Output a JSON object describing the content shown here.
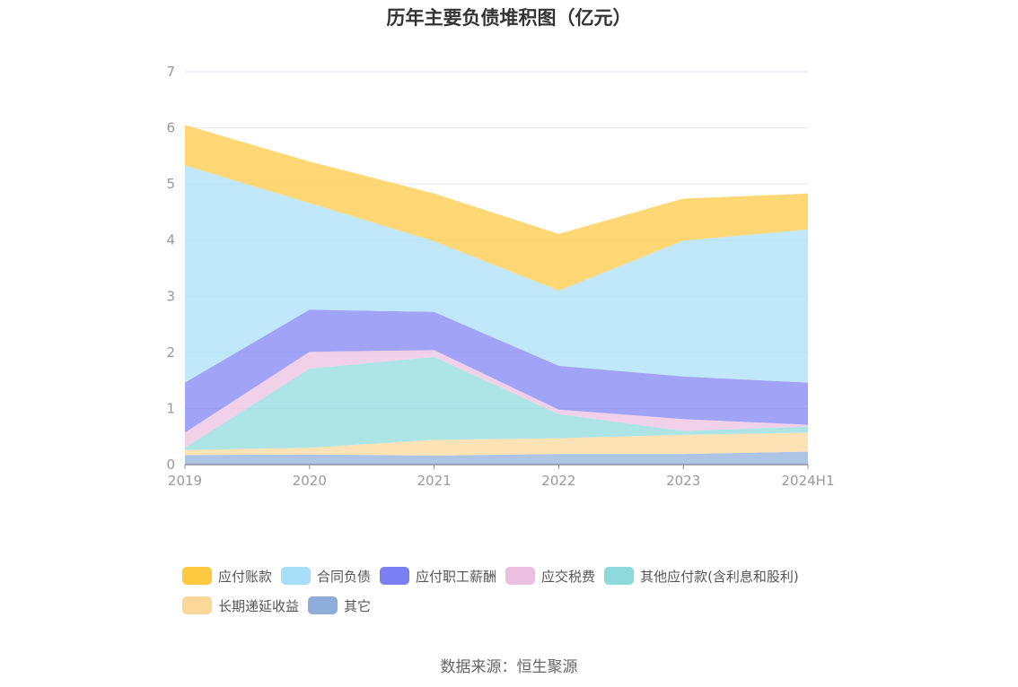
{
  "chart_data": {
    "type": "area",
    "stacked": true,
    "title": "历年主要负债堆积图（亿元）",
    "categories": [
      "2019",
      "2020",
      "2021",
      "2022",
      "2023",
      "2024H1"
    ],
    "ylim": [
      0,
      7
    ],
    "yticks": [
      "0",
      "1",
      "2",
      "3",
      "4",
      "5",
      "6",
      "7"
    ],
    "grid": true,
    "legend_position": "bottom",
    "series": [
      {
        "name": "其它",
        "color": "#8eaddb",
        "values": [
          0.17,
          0.18,
          0.16,
          0.19,
          0.19,
          0.23
        ]
      },
      {
        "name": "长期递延收益",
        "color": "#fcd79a",
        "values": [
          0.09,
          0.12,
          0.28,
          0.28,
          0.34,
          0.34
        ]
      },
      {
        "name": "其他应付款(含利息和股利)",
        "color": "#8dd9dc",
        "values": [
          0.04,
          1.41,
          1.48,
          0.43,
          0.07,
          0.11
        ]
      },
      {
        "name": "应交税费",
        "color": "#ecbfe0",
        "values": [
          0.27,
          0.3,
          0.12,
          0.08,
          0.21,
          0.03
        ]
      },
      {
        "name": "应付职工薪酬",
        "color": "#7b7ff2",
        "values": [
          0.89,
          0.75,
          0.68,
          0.78,
          0.76,
          0.75
        ]
      },
      {
        "name": "合同负债",
        "color": "#a8dff8",
        "values": [
          3.87,
          1.9,
          1.26,
          1.34,
          2.42,
          2.73
        ]
      },
      {
        "name": "应付账款",
        "color": "#ffc940",
        "values": [
          0.72,
          0.74,
          0.85,
          1.01,
          0.75,
          0.64
        ]
      }
    ]
  },
  "legend": {
    "row1": [
      {
        "label": "应付账款",
        "color": "#ffc940"
      },
      {
        "label": "合同负债",
        "color": "#a8dff8"
      },
      {
        "label": "应付职工薪酬",
        "color": "#7b7ff2"
      },
      {
        "label": "应交税费",
        "color": "#ecbfe0"
      },
      {
        "label": "其他应付款(含利息和股利)",
        "color": "#8dd9dc"
      }
    ],
    "row2": [
      {
        "label": "长期递延收益",
        "color": "#fcd79a"
      },
      {
        "label": "其它",
        "color": "#8eaddb"
      }
    ]
  },
  "source": "数据来源：恒生聚源"
}
